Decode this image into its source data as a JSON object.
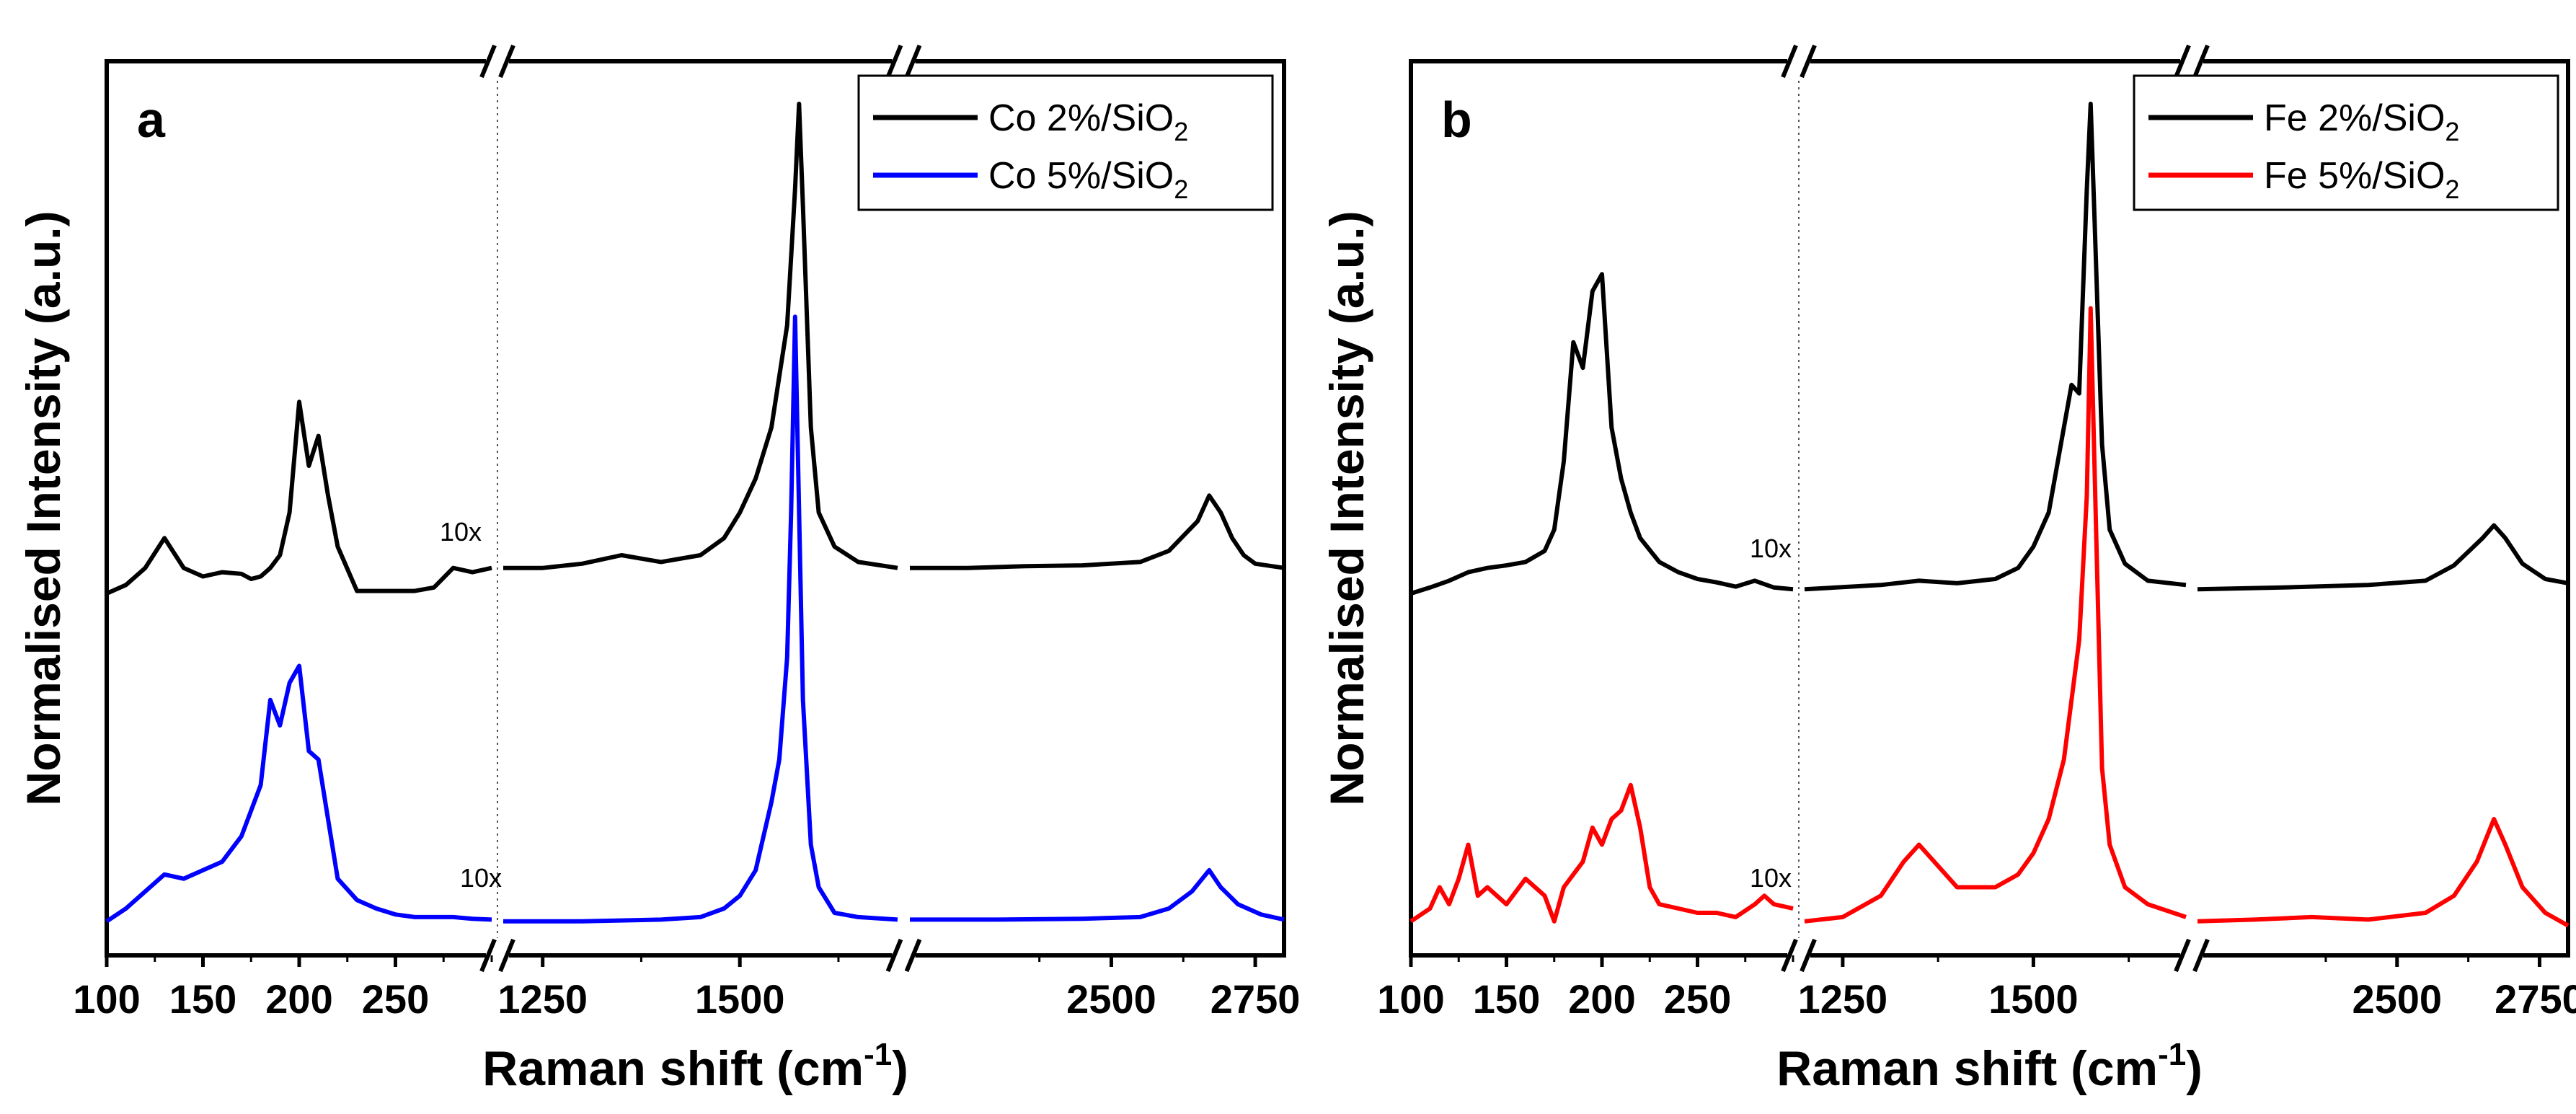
{
  "chart_data": [
    {
      "type": "line",
      "panel_label": "a",
      "ylabel": "Normalised Intensity (a.u.)",
      "xlabel": "Raman shift (cm",
      "xlabel_sup": "-1",
      "xlabel_close": ")",
      "x_segments": [
        {
          "xlim": [
            100,
            300
          ],
          "ticks": [
            100,
            150,
            200,
            250
          ],
          "tick_labels": [
            "100",
            "150",
            "200",
            "250"
          ],
          "multiplier_label": "10x"
        },
        {
          "xlim": [
            1200,
            1700
          ],
          "ticks": [
            1250,
            1500
          ],
          "tick_labels": [
            "1250",
            "1500"
          ]
        },
        {
          "xlim": [
            2150,
            2800
          ],
          "ticks": [
            2500,
            2750
          ],
          "tick_labels": [
            "2500",
            "2750"
          ]
        }
      ],
      "ylim": [
        0,
        1.05
      ],
      "legend": {
        "position": "top-right"
      },
      "series": [
        {
          "name": "Co 2%/SiO2",
          "legend_main": "Co 2%/SiO",
          "legend_sub": "2",
          "color": "#000000",
          "segments": [
            {
              "x": [
                100,
                110,
                120,
                130,
                140,
                150,
                160,
                170,
                175,
                180,
                185,
                190,
                195,
                200,
                205,
                210,
                215,
                220,
                230,
                240,
                250,
                260,
                270,
                280,
                290,
                300
              ],
              "y": [
                0.425,
                0.435,
                0.455,
                0.49,
                0.455,
                0.445,
                0.45,
                0.448,
                0.442,
                0.445,
                0.455,
                0.47,
                0.52,
                0.65,
                0.575,
                0.61,
                0.54,
                0.48,
                0.428,
                0.428,
                0.428,
                0.428,
                0.432,
                0.455,
                0.45,
                0.455
              ]
            },
            {
              "x": [
                1200,
                1250,
                1300,
                1350,
                1400,
                1450,
                1480,
                1500,
                1520,
                1540,
                1550,
                1560,
                1570,
                1575,
                1580,
                1590,
                1600,
                1620,
                1650,
                1700
              ],
              "y": [
                0.455,
                0.455,
                0.46,
                0.47,
                0.462,
                0.47,
                0.49,
                0.52,
                0.56,
                0.62,
                0.68,
                0.74,
                0.9,
                1.0,
                0.88,
                0.62,
                0.52,
                0.48,
                0.462,
                0.455
              ]
            },
            {
              "x": [
                2150,
                2250,
                2350,
                2450,
                2550,
                2600,
                2650,
                2670,
                2690,
                2710,
                2730,
                2750,
                2800
              ],
              "y": [
                0.455,
                0.455,
                0.457,
                0.458,
                0.462,
                0.475,
                0.51,
                0.54,
                0.52,
                0.49,
                0.47,
                0.46,
                0.455
              ]
            }
          ]
        },
        {
          "name": "Co 5%/SiO2",
          "legend_main": "Co 5%/SiO",
          "legend_sub": "2",
          "color": "#0000ff",
          "segments": [
            {
              "x": [
                100,
                110,
                120,
                130,
                140,
                150,
                160,
                170,
                180,
                185,
                190,
                195,
                200,
                205,
                210,
                215,
                220,
                230,
                240,
                250,
                260,
                270,
                280,
                290,
                300
              ],
              "y": [
                0.04,
                0.055,
                0.075,
                0.095,
                0.09,
                0.1,
                0.11,
                0.14,
                0.2,
                0.3,
                0.27,
                0.32,
                0.34,
                0.24,
                0.23,
                0.16,
                0.09,
                0.065,
                0.055,
                0.048,
                0.045,
                0.045,
                0.045,
                0.043,
                0.042
              ]
            },
            {
              "x": [
                1200,
                1300,
                1400,
                1450,
                1480,
                1500,
                1520,
                1540,
                1550,
                1560,
                1565,
                1570,
                1580,
                1590,
                1600,
                1620,
                1650,
                1700
              ],
              "y": [
                0.04,
                0.04,
                0.042,
                0.045,
                0.055,
                0.07,
                0.1,
                0.18,
                0.23,
                0.35,
                0.52,
                0.75,
                0.3,
                0.13,
                0.08,
                0.05,
                0.045,
                0.042
              ]
            },
            {
              "x": [
                2150,
                2300,
                2450,
                2550,
                2600,
                2640,
                2670,
                2690,
                2720,
                2760,
                2800
              ],
              "y": [
                0.042,
                0.042,
                0.043,
                0.045,
                0.055,
                0.075,
                0.1,
                0.08,
                0.06,
                0.048,
                0.042
              ]
            }
          ]
        }
      ]
    },
    {
      "type": "line",
      "panel_label": "b",
      "ylabel": "Normalised Intensity (a.u.)",
      "xlabel": "Raman shift (cm",
      "xlabel_sup": "-1",
      "xlabel_close": ")",
      "x_segments": [
        {
          "xlim": [
            100,
            300
          ],
          "ticks": [
            100,
            150,
            200,
            250
          ],
          "tick_labels": [
            "100",
            "150",
            "200",
            "250"
          ],
          "multiplier_label": "10x"
        },
        {
          "xlim": [
            1200,
            1700
          ],
          "ticks": [
            1250,
            1500
          ],
          "tick_labels": [
            "1250",
            "1500"
          ]
        },
        {
          "xlim": [
            2150,
            2800
          ],
          "ticks": [
            2500,
            2750
          ],
          "tick_labels": [
            "2500",
            "2750"
          ]
        }
      ],
      "ylim": [
        0,
        1.05
      ],
      "legend": {
        "position": "top-right"
      },
      "series": [
        {
          "name": "Fe 2%/SiO2",
          "legend_main": "Fe 2%/SiO",
          "legend_sub": "2",
          "color": "#000000",
          "segments": [
            {
              "x": [
                100,
                110,
                120,
                130,
                140,
                150,
                160,
                170,
                175,
                180,
                185,
                190,
                195,
                200,
                205,
                210,
                215,
                220,
                230,
                240,
                250,
                260,
                270,
                280,
                290,
                300
              ],
              "y": [
                0.425,
                0.432,
                0.44,
                0.45,
                0.455,
                0.458,
                0.462,
                0.475,
                0.5,
                0.58,
                0.72,
                0.69,
                0.78,
                0.8,
                0.62,
                0.56,
                0.52,
                0.49,
                0.462,
                0.45,
                0.442,
                0.438,
                0.433,
                0.44,
                0.432,
                0.43
              ]
            },
            {
              "x": [
                1200,
                1300,
                1350,
                1400,
                1450,
                1480,
                1500,
                1520,
                1540,
                1550,
                1560,
                1570,
                1575,
                1580,
                1590,
                1600,
                1620,
                1650,
                1700
              ],
              "y": [
                0.43,
                0.435,
                0.44,
                0.437,
                0.442,
                0.455,
                0.48,
                0.52,
                0.62,
                0.67,
                0.66,
                0.9,
                1.0,
                0.87,
                0.6,
                0.5,
                0.46,
                0.44,
                0.435
              ]
            },
            {
              "x": [
                2150,
                2300,
                2450,
                2550,
                2600,
                2650,
                2670,
                2690,
                2720,
                2760,
                2800
              ],
              "y": [
                0.43,
                0.432,
                0.435,
                0.44,
                0.458,
                0.49,
                0.505,
                0.49,
                0.46,
                0.442,
                0.437
              ]
            }
          ]
        },
        {
          "name": "Fe 5%/SiO2",
          "legend_main": "Fe 5%/SiO",
          "legend_sub": "2",
          "color": "#ff0000",
          "segments": [
            {
              "x": [
                100,
                110,
                115,
                120,
                125,
                130,
                135,
                140,
                150,
                160,
                170,
                175,
                180,
                190,
                195,
                200,
                205,
                210,
                215,
                220,
                225,
                230,
                240,
                250,
                260,
                270,
                280,
                285,
                290,
                300
              ],
              "y": [
                0.04,
                0.055,
                0.08,
                0.06,
                0.09,
                0.13,
                0.07,
                0.08,
                0.06,
                0.09,
                0.07,
                0.04,
                0.08,
                0.11,
                0.15,
                0.13,
                0.16,
                0.17,
                0.2,
                0.15,
                0.08,
                0.06,
                0.055,
                0.05,
                0.05,
                0.045,
                0.06,
                0.07,
                0.06,
                0.055
              ]
            },
            {
              "x": [
                1200,
                1250,
                1300,
                1330,
                1350,
                1370,
                1400,
                1450,
                1480,
                1500,
                1520,
                1540,
                1550,
                1560,
                1570,
                1575,
                1580,
                1590,
                1600,
                1620,
                1650,
                1700
              ],
              "y": [
                0.04,
                0.045,
                0.07,
                0.11,
                0.13,
                0.11,
                0.08,
                0.08,
                0.095,
                0.12,
                0.16,
                0.23,
                0.3,
                0.37,
                0.54,
                0.76,
                0.58,
                0.22,
                0.13,
                0.08,
                0.06,
                0.045
              ]
            },
            {
              "x": [
                2150,
                2250,
                2350,
                2450,
                2550,
                2600,
                2640,
                2670,
                2690,
                2720,
                2760,
                2800
              ],
              "y": [
                0.04,
                0.042,
                0.045,
                0.042,
                0.05,
                0.07,
                0.11,
                0.16,
                0.13,
                0.08,
                0.05,
                0.035
              ]
            }
          ]
        }
      ]
    }
  ]
}
